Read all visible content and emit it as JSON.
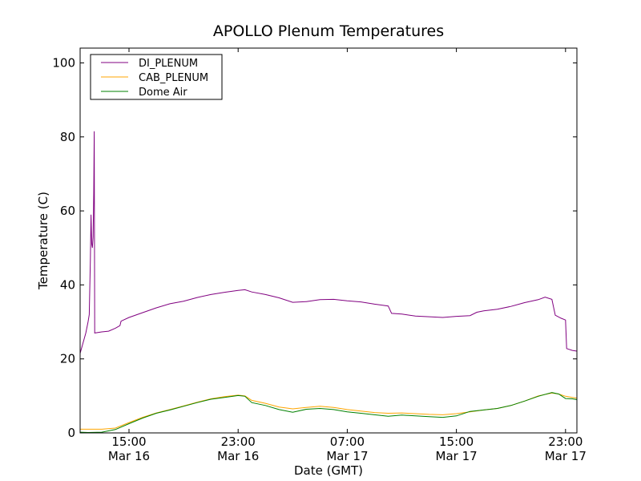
{
  "chart_data": {
    "type": "line",
    "title": "APOLLO Plenum Temperatures",
    "xlabel": "Date (GMT)",
    "ylabel": "Temperature (C)",
    "xlim": [
      "2015-03-16 11:25",
      "2015-03-17 23:50"
    ],
    "ylim": [
      0,
      104
    ],
    "yticks": [
      0,
      20,
      40,
      60,
      80,
      100
    ],
    "xticks": [
      {
        "t": "2015-03-16 15:00",
        "line1": "15:00",
        "line2": "Mar 16"
      },
      {
        "t": "2015-03-16 23:00",
        "line1": "23:00",
        "line2": "Mar 16"
      },
      {
        "t": "2015-03-17 07:00",
        "line1": "07:00",
        "line2": "Mar 17"
      },
      {
        "t": "2015-03-17 15:00",
        "line1": "15:00",
        "line2": "Mar 17"
      },
      {
        "t": "2015-03-17 23:00",
        "line1": "23:00",
        "line2": "Mar 17"
      }
    ],
    "legend_position": "top-left",
    "series": [
      {
        "name": "DI_PLENUM",
        "color": "#800080",
        "points": [
          [
            "2015-03-16 11:25",
            21.5
          ],
          [
            "2015-03-16 11:50",
            27.0
          ],
          [
            "2015-03-16 12:00",
            30.0
          ],
          [
            "2015-03-16 12:05",
            32.0
          ],
          [
            "2015-03-16 12:10",
            47.0
          ],
          [
            "2015-03-16 12:13",
            59.0
          ],
          [
            "2015-03-16 12:16",
            51.0
          ],
          [
            "2015-03-16 12:19",
            50.0
          ],
          [
            "2015-03-16 12:22",
            53.0
          ],
          [
            "2015-03-16 12:25",
            65.0
          ],
          [
            "2015-03-16 12:27",
            81.5
          ],
          [
            "2015-03-16 12:29",
            27.0
          ],
          [
            "2015-03-16 13:00",
            27.3
          ],
          [
            "2015-03-16 13:30",
            27.5
          ],
          [
            "2015-03-16 14:00",
            28.3
          ],
          [
            "2015-03-16 14:20",
            29.0
          ],
          [
            "2015-03-16 14:25",
            30.2
          ],
          [
            "2015-03-16 15:00",
            31.2
          ],
          [
            "2015-03-16 16:00",
            32.5
          ],
          [
            "2015-03-16 17:00",
            33.8
          ],
          [
            "2015-03-16 18:00",
            34.9
          ],
          [
            "2015-03-16 19:00",
            35.6
          ],
          [
            "2015-03-16 20:00",
            36.6
          ],
          [
            "2015-03-16 21:00",
            37.4
          ],
          [
            "2015-03-16 22:00",
            38.0
          ],
          [
            "2015-03-16 23:00",
            38.5
          ],
          [
            "2015-03-16 23:30",
            38.7
          ],
          [
            "2015-03-17 00:00",
            38.1
          ],
          [
            "2015-03-17 01:00",
            37.4
          ],
          [
            "2015-03-17 02:00",
            36.5
          ],
          [
            "2015-03-17 03:00",
            35.3
          ],
          [
            "2015-03-17 04:00",
            35.5
          ],
          [
            "2015-03-17 05:00",
            36.0
          ],
          [
            "2015-03-17 06:00",
            36.1
          ],
          [
            "2015-03-17 07:00",
            35.7
          ],
          [
            "2015-03-17 08:00",
            35.4
          ],
          [
            "2015-03-17 09:00",
            34.8
          ],
          [
            "2015-03-17 10:00",
            34.3
          ],
          [
            "2015-03-17 10:15",
            32.3
          ],
          [
            "2015-03-17 11:00",
            32.1
          ],
          [
            "2015-03-17 12:00",
            31.6
          ],
          [
            "2015-03-17 13:00",
            31.4
          ],
          [
            "2015-03-17 14:00",
            31.2
          ],
          [
            "2015-03-17 15:00",
            31.5
          ],
          [
            "2015-03-17 16:00",
            31.7
          ],
          [
            "2015-03-17 16:30",
            32.6
          ],
          [
            "2015-03-17 17:00",
            33.0
          ],
          [
            "2015-03-17 18:00",
            33.4
          ],
          [
            "2015-03-17 19:00",
            34.2
          ],
          [
            "2015-03-17 20:00",
            35.2
          ],
          [
            "2015-03-17 21:00",
            36.0
          ],
          [
            "2015-03-17 21:30",
            36.7
          ],
          [
            "2015-03-17 22:00",
            36.1
          ],
          [
            "2015-03-17 22:15",
            31.8
          ],
          [
            "2015-03-17 22:40",
            31.0
          ],
          [
            "2015-03-17 23:00",
            30.5
          ],
          [
            "2015-03-17 23:05",
            22.8
          ],
          [
            "2015-03-17 23:30",
            22.3
          ],
          [
            "2015-03-17 23:50",
            22.1
          ]
        ]
      },
      {
        "name": "CAB_PLENUM",
        "color": "#ffa500",
        "points": [
          [
            "2015-03-16 11:25",
            1.0
          ],
          [
            "2015-03-16 12:00",
            1.0
          ],
          [
            "2015-03-16 13:00",
            1.0
          ],
          [
            "2015-03-16 14:00",
            1.3
          ],
          [
            "2015-03-16 15:00",
            2.8
          ],
          [
            "2015-03-16 16:00",
            4.2
          ],
          [
            "2015-03-16 17:00",
            5.4
          ],
          [
            "2015-03-16 18:00",
            6.3
          ],
          [
            "2015-03-16 19:00",
            7.3
          ],
          [
            "2015-03-16 20:00",
            8.3
          ],
          [
            "2015-03-16 21:00",
            9.2
          ],
          [
            "2015-03-16 22:00",
            9.8
          ],
          [
            "2015-03-16 23:00",
            10.2
          ],
          [
            "2015-03-16 23:30",
            10.0
          ],
          [
            "2015-03-17 00:00",
            8.8
          ],
          [
            "2015-03-17 01:00",
            8.0
          ],
          [
            "2015-03-17 02:00",
            7.0
          ],
          [
            "2015-03-17 03:00",
            6.5
          ],
          [
            "2015-03-17 04:00",
            6.9
          ],
          [
            "2015-03-17 05:00",
            7.2
          ],
          [
            "2015-03-17 06:00",
            6.9
          ],
          [
            "2015-03-17 07:00",
            6.3
          ],
          [
            "2015-03-17 08:00",
            5.9
          ],
          [
            "2015-03-17 09:00",
            5.5
          ],
          [
            "2015-03-17 10:00",
            5.3
          ],
          [
            "2015-03-17 11:00",
            5.4
          ],
          [
            "2015-03-17 12:00",
            5.2
          ],
          [
            "2015-03-17 13:00",
            5.0
          ],
          [
            "2015-03-17 14:00",
            4.9
          ],
          [
            "2015-03-17 15:00",
            5.2
          ],
          [
            "2015-03-17 16:00",
            5.7
          ],
          [
            "2015-03-17 17:00",
            6.2
          ],
          [
            "2015-03-17 18:00",
            6.6
          ],
          [
            "2015-03-17 19:00",
            7.4
          ],
          [
            "2015-03-17 20:00",
            8.6
          ],
          [
            "2015-03-17 21:00",
            10.0
          ],
          [
            "2015-03-17 22:00",
            10.8
          ],
          [
            "2015-03-17 22:30",
            10.5
          ],
          [
            "2015-03-17 23:00",
            9.9
          ],
          [
            "2015-03-17 23:30",
            9.6
          ],
          [
            "2015-03-17 23:50",
            9.4
          ]
        ]
      },
      {
        "name": "Dome Air",
        "color": "#008000",
        "points": [
          [
            "2015-03-16 11:25",
            0.2
          ],
          [
            "2015-03-16 12:00",
            0.1
          ],
          [
            "2015-03-16 13:00",
            0.2
          ],
          [
            "2015-03-16 14:00",
            0.9
          ],
          [
            "2015-03-16 15:00",
            2.5
          ],
          [
            "2015-03-16 16:00",
            4.0
          ],
          [
            "2015-03-16 17:00",
            5.3
          ],
          [
            "2015-03-16 18:00",
            6.2
          ],
          [
            "2015-03-16 19:00",
            7.2
          ],
          [
            "2015-03-16 20:00",
            8.2
          ],
          [
            "2015-03-16 21:00",
            9.1
          ],
          [
            "2015-03-16 22:00",
            9.6
          ],
          [
            "2015-03-16 23:00",
            10.1
          ],
          [
            "2015-03-16 23:30",
            9.9
          ],
          [
            "2015-03-17 00:00",
            8.2
          ],
          [
            "2015-03-17 01:00",
            7.4
          ],
          [
            "2015-03-17 02:00",
            6.3
          ],
          [
            "2015-03-17 03:00",
            5.6
          ],
          [
            "2015-03-17 04:00",
            6.4
          ],
          [
            "2015-03-17 05:00",
            6.6
          ],
          [
            "2015-03-17 06:00",
            6.3
          ],
          [
            "2015-03-17 07:00",
            5.7
          ],
          [
            "2015-03-17 08:00",
            5.3
          ],
          [
            "2015-03-17 09:00",
            4.9
          ],
          [
            "2015-03-17 10:00",
            4.5
          ],
          [
            "2015-03-17 11:00",
            4.8
          ],
          [
            "2015-03-17 12:00",
            4.6
          ],
          [
            "2015-03-17 13:00",
            4.4
          ],
          [
            "2015-03-17 14:00",
            4.2
          ],
          [
            "2015-03-17 15:00",
            4.6
          ],
          [
            "2015-03-17 16:00",
            5.8
          ],
          [
            "2015-03-17 17:00",
            6.2
          ],
          [
            "2015-03-17 18:00",
            6.6
          ],
          [
            "2015-03-17 19:00",
            7.4
          ],
          [
            "2015-03-17 20:00",
            8.6
          ],
          [
            "2015-03-17 21:00",
            9.9
          ],
          [
            "2015-03-17 22:00",
            10.9
          ],
          [
            "2015-03-17 22:30",
            10.5
          ],
          [
            "2015-03-17 23:00",
            9.3
          ],
          [
            "2015-03-17 23:30",
            9.2
          ],
          [
            "2015-03-17 23:50",
            9.0
          ]
        ]
      }
    ]
  }
}
